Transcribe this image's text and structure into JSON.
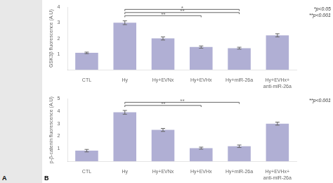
{
  "chart_data": [
    {
      "type": "bar",
      "categories": [
        "CTL",
        "Hy",
        "Hy+EVNx",
        "Hy+EVHx",
        "Hy+miR-26a",
        "Hy+EVHx+\nanti-miR-26a"
      ],
      "values": [
        1.08,
        3.0,
        2.0,
        1.45,
        1.38,
        2.2
      ],
      "errors": [
        0.05,
        0.12,
        0.1,
        0.07,
        0.06,
        0.1
      ],
      "ylabel": "GSK3β fluorescence (A.U)",
      "ylim": [
        0,
        4.0
      ],
      "yticks": [
        1,
        2,
        3,
        4
      ],
      "color": "#b0afd4",
      "grid": false,
      "annotations": [
        {
          "from": "Hy",
          "to": "Hy+EVHx",
          "y": 3.45,
          "label": "**"
        },
        {
          "from": "Hy",
          "to": "Hy+miR-26a",
          "y": 3.65,
          "label": "**"
        },
        {
          "from": "Hy",
          "to": "Hy+miR-26a",
          "y": 3.85,
          "label": "*"
        }
      ],
      "legend_text": "*p<0.05\n**p<0.001"
    },
    {
      "type": "bar",
      "categories": [
        "CTL",
        "Hy",
        "Hy+EVNx",
        "Hy+EVHx",
        "Hy+miR-26a",
        "Hy+EVHx+\nanti-miR-26a"
      ],
      "values": [
        0.85,
        3.9,
        2.5,
        1.05,
        1.2,
        3.0
      ],
      "errors": [
        0.1,
        0.15,
        0.12,
        0.08,
        0.1,
        0.12
      ],
      "ylabel": "p-β-catenin fluorescence (A.U)",
      "ylim": [
        0,
        5.0
      ],
      "yticks": [
        1,
        2,
        3,
        4,
        5
      ],
      "color": "#b0afd4",
      "grid": false,
      "annotations": [
        {
          "from": "Hy",
          "to": "Hy+EVHx",
          "y": 4.45,
          "label": "**"
        },
        {
          "from": "Hy",
          "to": "Hy+miR-26a",
          "y": 4.7,
          "label": "**"
        }
      ],
      "legend_text": "**p<0.001"
    }
  ],
  "panel_labels": [
    "A",
    "B"
  ]
}
